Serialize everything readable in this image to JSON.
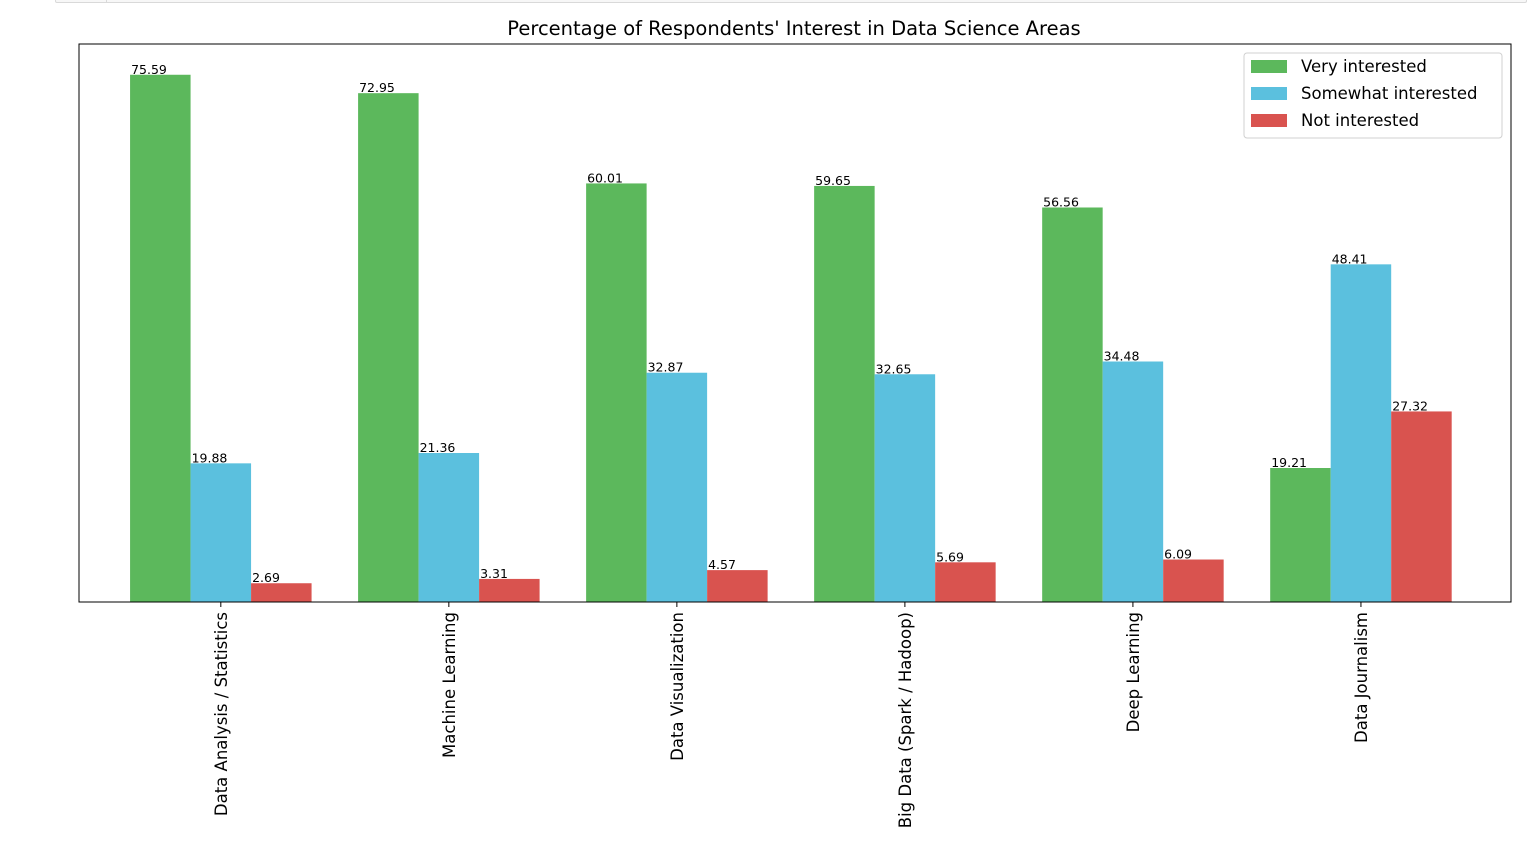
{
  "chart_data": {
    "type": "bar",
    "title": "Percentage of Respondents' Interest in Data Science Areas",
    "xlabel": "",
    "ylabel": "",
    "ylim": [
      0,
      80
    ],
    "grid": false,
    "legend_position": "top-right",
    "categories": [
      "Data Analysis / Statistics",
      "Machine Learning",
      "Data Visualization",
      "Big Data (Spark / Hadoop)",
      "Deep Learning",
      "Data Journalism"
    ],
    "series": [
      {
        "name": "Very interested",
        "color": "#5cb85c",
        "values": [
          75.59,
          72.95,
          60.01,
          59.65,
          56.56,
          19.21
        ],
        "labels": [
          "75.59",
          "72.95",
          "60.01",
          "59.65",
          "56.56",
          "19.21"
        ]
      },
      {
        "name": "Somewhat interested",
        "color": "#5bc0de",
        "values": [
          19.88,
          21.36,
          32.87,
          32.65,
          34.48,
          48.41
        ],
        "labels": [
          "19.88",
          "21.36",
          "32.87",
          "32.65",
          "34.48",
          "48.41"
        ]
      },
      {
        "name": "Not interested",
        "color": "#d9534f",
        "values": [
          2.69,
          3.31,
          4.57,
          5.69,
          6.09,
          27.32
        ],
        "labels": [
          "2.69",
          "3.31",
          "4.57",
          "5.69",
          "6.09",
          "27.32"
        ]
      }
    ]
  }
}
